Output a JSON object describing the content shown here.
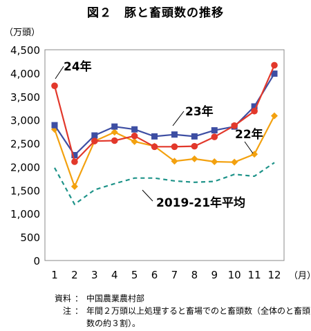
{
  "title": "図２　豚と畜頭数の推移",
  "chart_data": {
    "type": "line",
    "unit_label": "（万頭）",
    "x_unit_label": "（月）",
    "categories": [
      "1",
      "2",
      "3",
      "4",
      "5",
      "6",
      "7",
      "8",
      "9",
      "10",
      "11",
      "12"
    ],
    "ylim": [
      0,
      4500
    ],
    "y_ticks": [
      "0",
      "500",
      "1,000",
      "1,500",
      "2,000",
      "2,500",
      "3,000",
      "3,500",
      "4,000",
      "4,500"
    ],
    "grid": false,
    "series": [
      {
        "name": "24年",
        "values": [
          3730,
          2110,
          2550,
          2560,
          2660,
          2430,
          2430,
          2440,
          2640,
          2880,
          3190,
          4170
        ],
        "color": "#e2382b",
        "marker": "circle",
        "dash": ""
      },
      {
        "name": "23年",
        "values": [
          2890,
          2250,
          2670,
          2860,
          2800,
          2650,
          2690,
          2650,
          2780,
          2860,
          3290,
          3990
        ],
        "color": "#3d4ea3",
        "marker": "square",
        "dash": ""
      },
      {
        "name": "22年",
        "values": [
          2800,
          1580,
          2550,
          2740,
          2540,
          2440,
          2120,
          2170,
          2110,
          2100,
          2270,
          3090
        ],
        "color": "#f3a10f",
        "marker": "diamond",
        "dash": ""
      },
      {
        "name": "2019-21年平均",
        "values": [
          1980,
          1200,
          1510,
          1640,
          1760,
          1760,
          1700,
          1670,
          1690,
          1840,
          1800,
          2090
        ],
        "color": "#1e9389",
        "marker": "none",
        "dash": "6,5"
      }
    ]
  },
  "notes": [
    {
      "key": "資料",
      "sep": "：",
      "text": "中国農業農村部"
    },
    {
      "key": "注",
      "sep": "：",
      "text": "年間２万頭以上処理すると畜場でのと畜頭数（全体のと畜頭数の約３割）。"
    }
  ]
}
